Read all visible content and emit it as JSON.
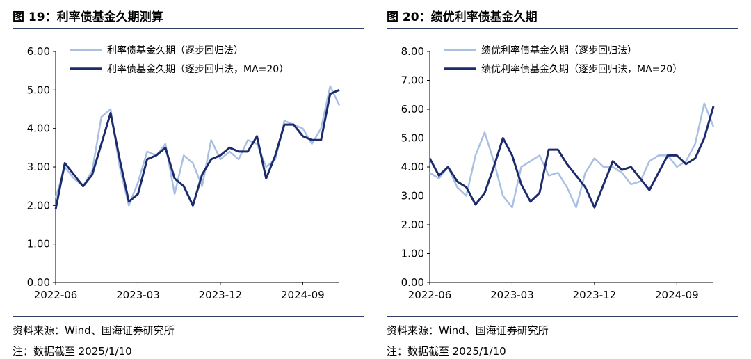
{
  "panels": [
    {
      "title": "图 19：利率债基金久期测算",
      "source": "资料来源：Wind、国海证券研究所",
      "note": "注：数据截至 2025/1/10"
    },
    {
      "title": "图 20：绩优利率债基金久期",
      "source": "资料来源：Wind、国海证券研究所",
      "note": "注：数据截至 2025/1/10"
    }
  ],
  "chart_data": [
    {
      "type": "line",
      "title": "",
      "xlabel": "",
      "ylabel": "",
      "ylim": [
        0,
        6
      ],
      "y_ticks": [
        "0.00",
        "1.00",
        "2.00",
        "3.00",
        "4.00",
        "5.00",
        "6.00"
      ],
      "x_ticks": [
        "2022-06",
        "2023-03",
        "2023-12",
        "2024-09"
      ],
      "x_range": [
        "2022-06",
        "2025-01"
      ],
      "legend_position": "top-left",
      "grid": false,
      "series": [
        {
          "name": "利率债基金久期（逐步回归法）",
          "color": "#a9c0e2",
          "x": [
            "2022-06",
            "2022-07",
            "2022-08",
            "2022-09",
            "2022-10",
            "2022-11",
            "2022-12",
            "2023-01",
            "2023-02",
            "2023-03",
            "2023-04",
            "2023-05",
            "2023-06",
            "2023-07",
            "2023-08",
            "2023-09",
            "2023-10",
            "2023-11",
            "2023-12",
            "2024-01",
            "2024-02",
            "2024-03",
            "2024-04",
            "2024-05",
            "2024-06",
            "2024-07",
            "2024-08",
            "2024-09",
            "2024-10",
            "2024-11",
            "2024-12",
            "2025-01"
          ],
          "values": [
            2.2,
            3.0,
            2.7,
            2.5,
            2.9,
            4.3,
            4.5,
            3.0,
            2.0,
            2.6,
            3.4,
            3.3,
            3.6,
            2.3,
            3.3,
            3.1,
            2.5,
            3.7,
            3.2,
            3.4,
            3.2,
            3.7,
            3.6,
            3.0,
            3.2,
            4.2,
            4.1,
            4.0,
            3.6,
            4.0,
            5.1,
            4.6
          ]
        },
        {
          "name": "利率债基金久期（逐步回归法，MA=20）",
          "color": "#1c2b6b",
          "x": [
            "2022-06",
            "2022-07",
            "2022-08",
            "2022-09",
            "2022-10",
            "2022-11",
            "2022-12",
            "2023-01",
            "2023-02",
            "2023-03",
            "2023-04",
            "2023-05",
            "2023-06",
            "2023-07",
            "2023-08",
            "2023-09",
            "2023-10",
            "2023-11",
            "2023-12",
            "2024-01",
            "2024-02",
            "2024-03",
            "2024-04",
            "2024-05",
            "2024-06",
            "2024-07",
            "2024-08",
            "2024-09",
            "2024-10",
            "2024-11",
            "2024-12",
            "2025-01"
          ],
          "values": [
            1.9,
            3.1,
            2.8,
            2.5,
            2.8,
            3.6,
            4.4,
            3.2,
            2.1,
            2.3,
            3.2,
            3.3,
            3.5,
            2.7,
            2.5,
            2.0,
            2.8,
            3.2,
            3.3,
            3.5,
            3.4,
            3.4,
            3.8,
            2.7,
            3.3,
            4.1,
            4.1,
            3.8,
            3.7,
            3.7,
            4.9,
            5.0
          ]
        }
      ]
    },
    {
      "type": "line",
      "title": "",
      "xlabel": "",
      "ylabel": "",
      "ylim": [
        0,
        8
      ],
      "y_ticks": [
        "0.00",
        "1.00",
        "2.00",
        "3.00",
        "4.00",
        "5.00",
        "6.00",
        "7.00",
        "8.00"
      ],
      "x_ticks": [
        "2022-06",
        "2023-03",
        "2023-12",
        "2024-09"
      ],
      "x_range": [
        "2022-06",
        "2025-01"
      ],
      "legend_position": "top-left",
      "grid": false,
      "series": [
        {
          "name": "绩优利率债基金久期（逐步回归法）",
          "color": "#a9c0e2",
          "x": [
            "2022-06",
            "2022-07",
            "2022-08",
            "2022-09",
            "2022-10",
            "2022-11",
            "2022-12",
            "2023-01",
            "2023-02",
            "2023-03",
            "2023-04",
            "2023-05",
            "2023-06",
            "2023-07",
            "2023-08",
            "2023-09",
            "2023-10",
            "2023-11",
            "2023-12",
            "2024-01",
            "2024-02",
            "2024-03",
            "2024-04",
            "2024-05",
            "2024-06",
            "2024-07",
            "2024-08",
            "2024-09",
            "2024-10",
            "2024-11",
            "2024-12",
            "2025-01"
          ],
          "values": [
            3.8,
            3.6,
            4.0,
            3.3,
            3.0,
            4.4,
            5.2,
            4.2,
            3.0,
            2.6,
            4.0,
            4.2,
            4.4,
            3.7,
            3.8,
            3.3,
            2.6,
            3.8,
            4.3,
            4.0,
            4.0,
            3.8,
            3.4,
            3.5,
            4.2,
            4.4,
            4.4,
            4.0,
            4.2,
            4.8,
            6.2,
            5.4
          ]
        },
        {
          "name": "绩优利率债基金久期（逐步回归法，MA=20）",
          "color": "#1c2b6b",
          "x": [
            "2022-06",
            "2022-07",
            "2022-08",
            "2022-09",
            "2022-10",
            "2022-11",
            "2022-12",
            "2023-01",
            "2023-02",
            "2023-03",
            "2023-04",
            "2023-05",
            "2023-06",
            "2023-07",
            "2023-08",
            "2023-09",
            "2023-10",
            "2023-11",
            "2023-12",
            "2024-01",
            "2024-02",
            "2024-03",
            "2024-04",
            "2024-05",
            "2024-06",
            "2024-07",
            "2024-08",
            "2024-09",
            "2024-10",
            "2024-11",
            "2024-12",
            "2025-01"
          ],
          "values": [
            4.3,
            3.7,
            4.0,
            3.5,
            3.3,
            2.7,
            3.1,
            4.0,
            5.0,
            4.4,
            3.4,
            2.8,
            3.1,
            4.6,
            4.6,
            4.1,
            3.7,
            3.3,
            2.6,
            3.4,
            4.2,
            3.9,
            4.0,
            3.6,
            3.2,
            3.8,
            4.4,
            4.4,
            4.1,
            4.3,
            5.0,
            6.1
          ]
        }
      ]
    }
  ]
}
